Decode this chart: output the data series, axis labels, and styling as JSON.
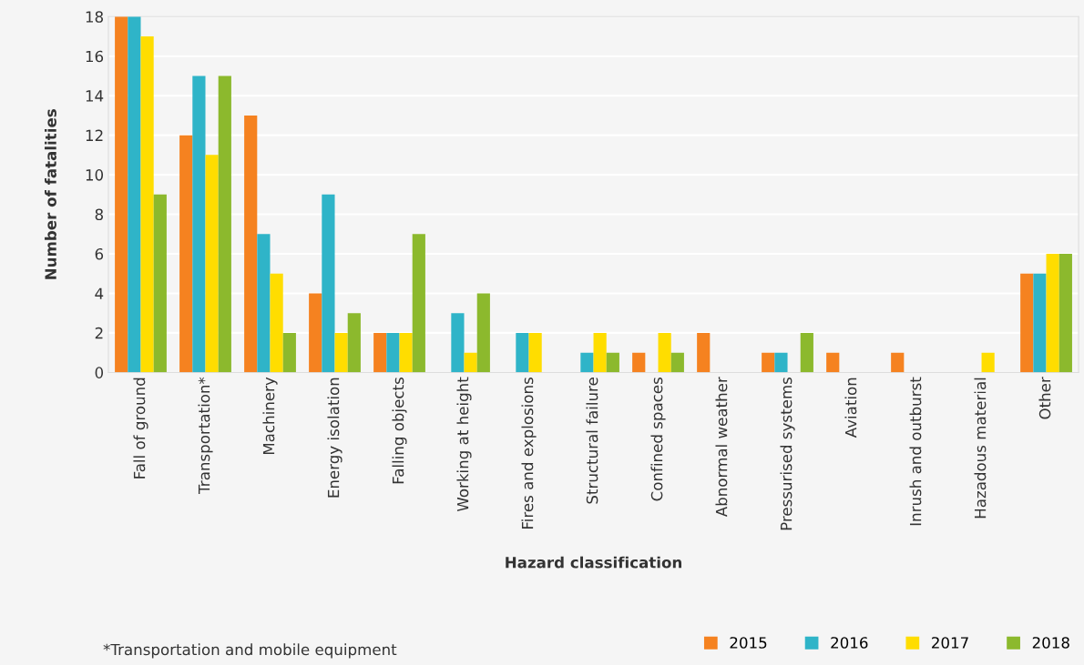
{
  "chart_data": {
    "type": "bar",
    "xlabel": "Hazard classification",
    "ylabel": "Number of fatalities",
    "categories": [
      "Fall of ground",
      "Transportation*",
      "Machinery",
      "Energy isolation",
      "Falling objects",
      "Working at height",
      "Fires and explosions",
      "Structural failure",
      "Confined spaces",
      "Abnormal weather",
      "Pressurised systems",
      "Aviation",
      "Inrush and outburst",
      "Hazadous material",
      "Other"
    ],
    "series": [
      {
        "name": "2015",
        "color": "#f58220",
        "values": [
          18,
          12,
          13,
          4,
          2,
          0,
          0,
          0,
          1,
          2,
          1,
          1,
          1,
          0,
          5
        ]
      },
      {
        "name": "2016",
        "color": "#2fb4c8",
        "values": [
          18,
          15,
          7,
          9,
          2,
          3,
          2,
          1,
          0,
          0,
          1,
          0,
          0,
          0,
          5
        ]
      },
      {
        "name": "2017",
        "color": "#ffdd00",
        "values": [
          17,
          11,
          5,
          2,
          2,
          1,
          2,
          2,
          2,
          0,
          0,
          0,
          0,
          1,
          6
        ]
      },
      {
        "name": "2018",
        "color": "#8cb92d",
        "values": [
          9,
          15,
          2,
          3,
          7,
          4,
          0,
          1,
          1,
          0,
          2,
          0,
          0,
          0,
          6
        ]
      }
    ],
    "ylim": [
      0,
      18
    ],
    "yticks": [
      0,
      2,
      4,
      6,
      8,
      10,
      12,
      14,
      16,
      18
    ],
    "grid": "y",
    "legend": "bottom right",
    "annotations": [
      "*Transportation and mobile equipment"
    ]
  }
}
